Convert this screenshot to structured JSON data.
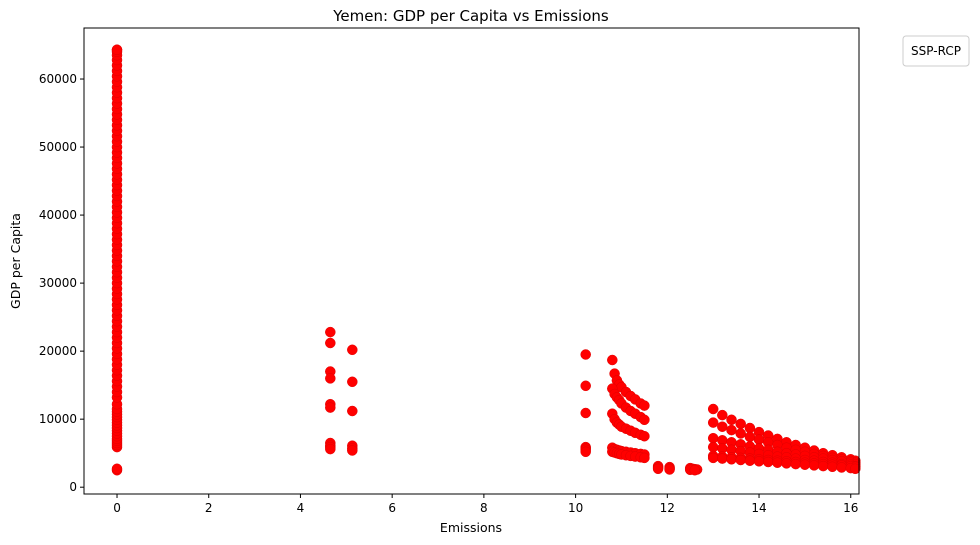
{
  "chart_data": {
    "type": "scatter",
    "title": "Yemen: GDP per Capita vs Emissions",
    "xlabel": "Emissions",
    "ylabel": "GDP per Capita",
    "xlim": [
      -0.72,
      16.18
    ],
    "ylim": [
      -1000,
      67500
    ],
    "xticks": [
      0,
      2,
      4,
      6,
      8,
      10,
      12,
      14,
      16
    ],
    "yticks": [
      0,
      10000,
      20000,
      30000,
      40000,
      50000,
      60000
    ],
    "grid": false,
    "legend": {
      "title": "SSP-RCP",
      "placement": "outside-top-right"
    },
    "marker_color": "#ff0000",
    "series": [
      {
        "x": [
          0,
          0,
          0,
          0,
          0,
          0,
          0,
          0,
          0,
          0,
          0,
          0,
          0,
          0,
          0,
          0,
          0,
          0,
          0,
          0,
          0,
          0,
          0,
          0,
          0,
          0,
          0,
          0,
          0,
          0,
          0,
          0,
          0,
          0,
          0,
          0,
          0,
          0,
          0,
          0,
          0,
          0,
          0,
          0,
          0,
          0,
          0,
          0,
          0,
          0,
          0,
          0,
          0,
          0,
          0,
          0,
          0,
          0,
          0,
          0,
          0,
          0,
          0,
          0,
          0,
          0,
          0,
          0,
          0,
          0,
          0,
          0,
          0,
          0,
          0,
          0,
          0,
          0,
          0,
          0,
          0,
          0,
          0,
          0,
          0,
          0,
          4.65,
          4.65,
          4.65,
          4.65,
          4.65,
          4.65,
          4.65,
          4.65,
          4.65,
          4.65,
          5.13,
          5.13,
          5.13,
          5.13,
          5.13,
          5.13,
          10.22,
          10.22,
          10.22,
          10.22,
          10.22,
          10.22,
          10.22,
          10.8,
          10.85,
          10.9,
          10.95,
          11.0,
          11.1,
          11.2,
          11.3,
          11.42,
          11.5,
          10.8,
          10.85,
          10.9,
          10.95,
          11.0,
          11.1,
          11.2,
          11.3,
          11.42,
          11.5,
          10.8,
          10.85,
          10.9,
          10.95,
          11.0,
          11.1,
          11.2,
          11.3,
          11.42,
          11.5,
          10.8,
          10.85,
          10.9,
          10.95,
          11.0,
          11.1,
          11.2,
          11.3,
          11.42,
          11.5,
          10.8,
          10.85,
          10.9,
          10.95,
          11.0,
          11.1,
          11.2,
          11.3,
          11.42,
          11.5,
          11.8,
          11.8,
          11.8,
          12.05,
          12.05,
          12.05,
          12.5,
          12.55,
          12.6,
          12.65,
          12.5,
          12.6,
          13.0,
          13.2,
          13.4,
          13.6,
          13.8,
          14.0,
          14.2,
          14.4,
          14.6,
          14.8,
          15.0,
          15.2,
          15.4,
          15.6,
          15.8,
          16.0,
          16.1,
          13.0,
          13.2,
          13.4,
          13.6,
          13.8,
          14.0,
          14.2,
          14.4,
          14.6,
          14.8,
          15.0,
          15.2,
          15.4,
          15.6,
          15.8,
          16.0,
          16.1,
          13.0,
          13.2,
          13.4,
          13.6,
          13.8,
          14.0,
          14.2,
          14.4,
          14.6,
          14.8,
          15.0,
          15.2,
          15.4,
          15.6,
          15.8,
          16.0,
          16.1,
          13.0,
          13.2,
          13.4,
          13.6,
          13.8,
          14.0,
          14.2,
          14.4,
          14.6,
          14.8,
          15.0,
          15.2,
          15.4,
          15.6,
          15.8,
          16.0,
          16.1,
          13.0,
          13.2,
          13.4,
          13.6,
          13.8,
          14.0,
          14.2,
          14.4,
          14.6,
          14.8,
          15.0,
          15.2,
          15.4,
          15.6,
          15.8,
          16.0,
          16.1,
          13.0,
          13.2,
          13.4,
          13.6,
          13.8,
          14.0,
          14.2,
          14.4,
          14.6,
          14.8,
          15.0,
          15.2,
          15.4,
          15.6,
          15.8,
          16.0,
          16.1
        ],
        "y": [
          2500,
          2700,
          5900,
          6200,
          6500,
          6800,
          7100,
          7500,
          7900,
          8300,
          8700,
          9100,
          9500,
          9900,
          10300,
          10700,
          11100,
          11500,
          12200,
          13200,
          14000,
          14800,
          15600,
          16400,
          17200,
          18000,
          18800,
          19600,
          20400,
          21200,
          22000,
          22800,
          23600,
          24400,
          25200,
          26000,
          26800,
          27600,
          28400,
          29200,
          30000,
          30800,
          31600,
          32400,
          33200,
          34000,
          34800,
          35600,
          36400,
          37200,
          38000,
          38800,
          39600,
          40400,
          41200,
          42000,
          42800,
          43600,
          44400,
          45200,
          46000,
          46800,
          47600,
          48400,
          49200,
          50000,
          50800,
          51600,
          52400,
          53200,
          54000,
          54800,
          55600,
          56400,
          57200,
          58000,
          58800,
          59600,
          60400,
          61200,
          62000,
          62800,
          63500,
          64000,
          64300,
          64300,
          22800,
          21200,
          17000,
          16000,
          12200,
          11700,
          6500,
          6100,
          5900,
          5600,
          20200,
          15500,
          11200,
          6100,
          5700,
          5400,
          19500,
          14900,
          10900,
          5900,
          5700,
          5500,
          5200,
          18700,
          16700,
          15700,
          15100,
          14700,
          14000,
          13400,
          12900,
          12300,
          12000,
          14500,
          13700,
          13200,
          12800,
          12300,
          11700,
          11200,
          10800,
          10300,
          9900,
          10800,
          10000,
          9500,
          9200,
          8900,
          8600,
          8300,
          8000,
          7700,
          7500,
          5800,
          5600,
          5500,
          5400,
          5300,
          5200,
          5100,
          5000,
          4900,
          4800,
          5200,
          5100,
          5000,
          4900,
          4800,
          4700,
          4600,
          4500,
          4400,
          4300,
          3100,
          2900,
          2700,
          2950,
          2750,
          2600,
          2800,
          2700,
          2650,
          2600,
          2550,
          2500,
          11500,
          10600,
          9900,
          9300,
          8700,
          8100,
          7600,
          7100,
          6600,
          6200,
          5800,
          5400,
          5000,
          4700,
          4400,
          4100,
          3900,
          9500,
          8900,
          8400,
          7900,
          7400,
          7000,
          6600,
          6200,
          5800,
          5500,
          5200,
          4900,
          4600,
          4300,
          4100,
          3800,
          3600,
          7200,
          6900,
          6600,
          6300,
          6000,
          5700,
          5500,
          5200,
          5000,
          4800,
          4600,
          4400,
          4200,
          4000,
          3800,
          3600,
          3400,
          5900,
          5700,
          5500,
          5300,
          5100,
          4900,
          4700,
          4500,
          4400,
          4200,
          4000,
          3900,
          3700,
          3600,
          3400,
          3300,
          3100,
          4600,
          4500,
          4400,
          4300,
          4200,
          4100,
          4000,
          3900,
          3800,
          3700,
          3600,
          3500,
          3400,
          3300,
          3200,
          3100,
          3000,
          4300,
          4200,
          4100,
          4000,
          3900,
          3800,
          3700,
          3600,
          3500,
          3400,
          3300,
          3200,
          3100,
          3000,
          2900,
          2800,
          2700
        ]
      }
    ]
  }
}
